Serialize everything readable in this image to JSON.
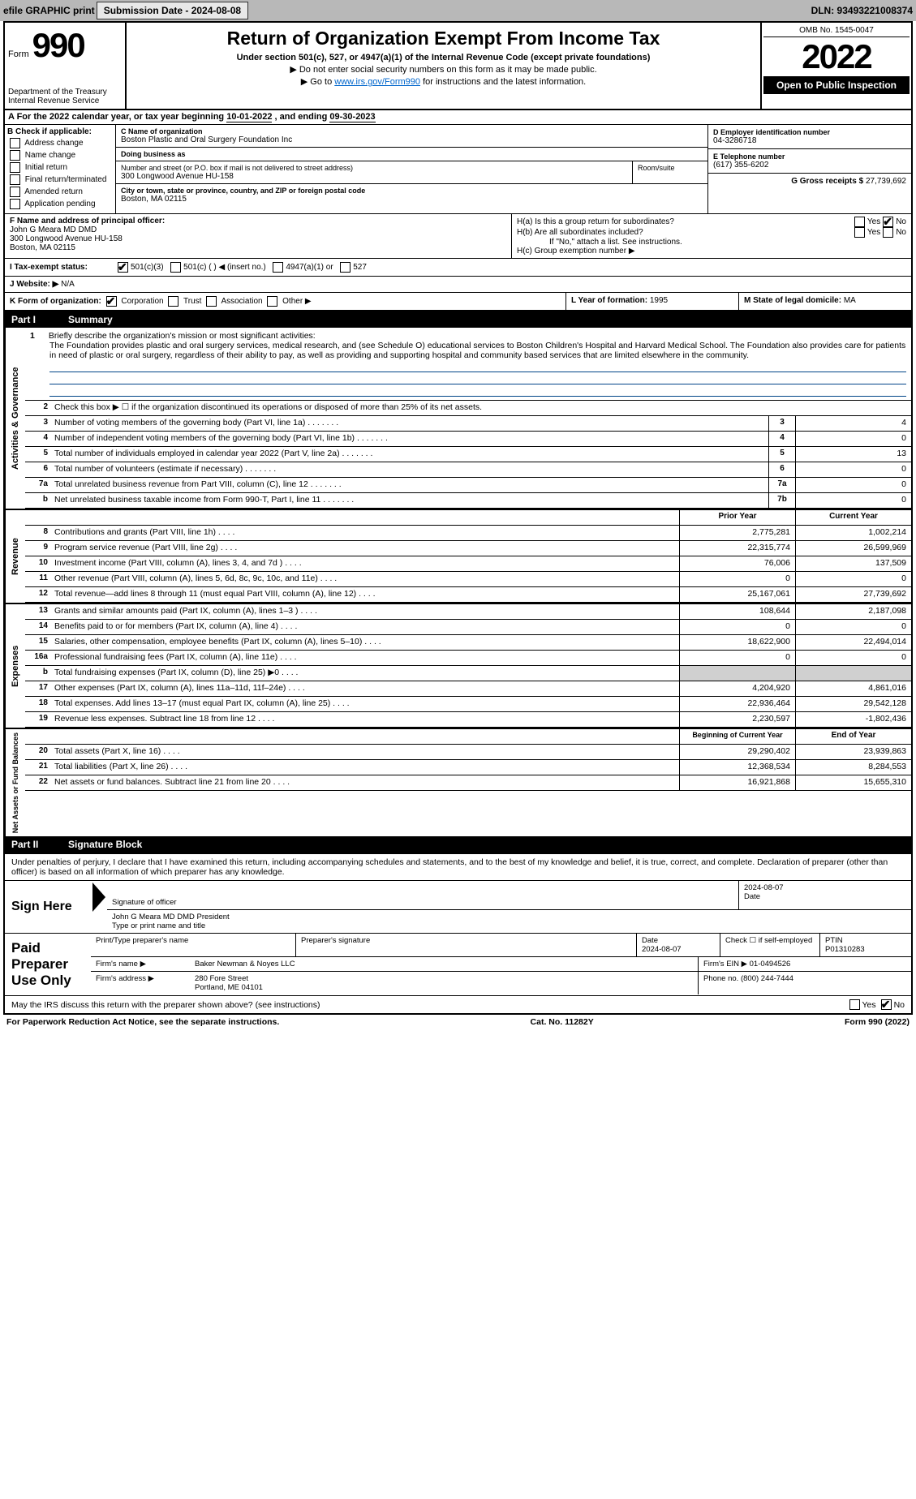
{
  "topbar": {
    "efile_label": "efile GRAPHIC print",
    "submission_label": "Submission Date - 2024-08-08",
    "dln_label": "DLN: 93493221008374"
  },
  "header": {
    "form_word": "Form",
    "form_number": "990",
    "dept": "Department of the Treasury",
    "irs": "Internal Revenue Service",
    "title": "Return of Organization Exempt From Income Tax",
    "subtitle": "Under section 501(c), 527, or 4947(a)(1) of the Internal Revenue Code (except private foundations)",
    "note1": "▶ Do not enter social security numbers on this form as it may be made public.",
    "note2_prefix": "▶ Go to ",
    "note2_link": "www.irs.gov/Form990",
    "note2_suffix": " for instructions and the latest information.",
    "omb": "OMB No. 1545-0047",
    "year": "2022",
    "open": "Open to Public Inspection"
  },
  "period": {
    "label_a": "A For the 2022 calendar year, or tax year beginning ",
    "begin": "10-01-2022",
    "mid": " , and ending ",
    "end": "09-30-2023"
  },
  "section_b": {
    "header": "B Check if applicable:",
    "opts": [
      "Address change",
      "Name change",
      "Initial return",
      "Final return/terminated",
      "Amended return",
      "Application pending"
    ]
  },
  "section_c": {
    "name_lbl": "C Name of organization",
    "name": "Boston Plastic and Oral Surgery Foundation Inc",
    "dba_lbl": "Doing business as",
    "dba": "",
    "street_lbl": "Number and street (or P.O. box if mail is not delivered to street address)",
    "street": "300 Longwood Avenue HU-158",
    "room_lbl": "Room/suite",
    "city_lbl": "City or town, state or province, country, and ZIP or foreign postal code",
    "city": "Boston, MA  02115"
  },
  "section_d": {
    "lbl": "D Employer identification number",
    "ein": "04-3286718",
    "tel_lbl": "E Telephone number",
    "tel": "(617) 355-6202",
    "gross_lbl": "G Gross receipts $ ",
    "gross": "27,739,692"
  },
  "section_f": {
    "lbl": "F Name and address of principal officer:",
    "name": "John G Meara MD DMD",
    "addr1": "300 Longwood Avenue HU-158",
    "addr2": "Boston, MA  02115"
  },
  "section_h": {
    "ha": "H(a)  Is this a group return for subordinates?",
    "hb": "H(b)  Are all subordinates included?",
    "hb_note": "If \"No,\" attach a list. See instructions.",
    "hc": "H(c)  Group exemption number ▶",
    "yes": "Yes",
    "no": "No"
  },
  "tax_status": {
    "lbl": "I  Tax-exempt status:",
    "opts": [
      "501(c)(3)",
      "501(c) (  ) ◀ (insert no.)",
      "4947(a)(1) or",
      "527"
    ]
  },
  "website": {
    "lbl": "J  Website: ▶",
    "val": "N/A"
  },
  "form_org": {
    "lbl": "K Form of organization:",
    "opts": [
      "Corporation",
      "Trust",
      "Association",
      "Other ▶"
    ]
  },
  "year_formed": {
    "lbl": "L Year of formation: ",
    "val": "1995"
  },
  "domicile": {
    "lbl": "M State of legal domicile: ",
    "val": "MA"
  },
  "part1": {
    "header_no": "Part I",
    "header": "Summary",
    "line1_lbl": "Briefly describe the organization's mission or most significant activities:",
    "mission": "The Foundation provides plastic and oral surgery services, medical research, and (see Schedule O) educational services to Boston Children's Hospital and Harvard Medical School. The Foundation also provides care for patients in need of plastic or oral surgery, regardless of their ability to pay, as well as providing and supporting hospital and community based services that are limited elsewhere in the community.",
    "line2": "Check this box ▶ ☐  if the organization discontinued its operations or disposed of more than 25% of its net assets.",
    "governance_lbl": "Activities & Governance",
    "revenue_lbl": "Revenue",
    "expenses_lbl": "Expenses",
    "netassets_lbl": "Net Assets or Fund Balances",
    "rows_gov": [
      {
        "n": "3",
        "d": "Number of voting members of the governing body (Part VI, line 1a)",
        "box": "3",
        "v": "4"
      },
      {
        "n": "4",
        "d": "Number of independent voting members of the governing body (Part VI, line 1b)",
        "box": "4",
        "v": "0"
      },
      {
        "n": "5",
        "d": "Total number of individuals employed in calendar year 2022 (Part V, line 2a)",
        "box": "5",
        "v": "13"
      },
      {
        "n": "6",
        "d": "Total number of volunteers (estimate if necessary)",
        "box": "6",
        "v": "0"
      },
      {
        "n": "7a",
        "d": "Total unrelated business revenue from Part VIII, column (C), line 12",
        "box": "7a",
        "v": "0"
      },
      {
        "n": "b",
        "d": "Net unrelated business taxable income from Form 990-T, Part I, line 11",
        "box": "7b",
        "v": "0"
      }
    ],
    "col_prior": "Prior Year",
    "col_current": "Current Year",
    "rows_rev": [
      {
        "n": "8",
        "d": "Contributions and grants (Part VIII, line 1h)",
        "p": "2,775,281",
        "c": "1,002,214"
      },
      {
        "n": "9",
        "d": "Program service revenue (Part VIII, line 2g)",
        "p": "22,315,774",
        "c": "26,599,969"
      },
      {
        "n": "10",
        "d": "Investment income (Part VIII, column (A), lines 3, 4, and 7d )",
        "p": "76,006",
        "c": "137,509"
      },
      {
        "n": "11",
        "d": "Other revenue (Part VIII, column (A), lines 5, 6d, 8c, 9c, 10c, and 11e)",
        "p": "0",
        "c": "0"
      },
      {
        "n": "12",
        "d": "Total revenue—add lines 8 through 11 (must equal Part VIII, column (A), line 12)",
        "p": "25,167,061",
        "c": "27,739,692"
      }
    ],
    "rows_exp": [
      {
        "n": "13",
        "d": "Grants and similar amounts paid (Part IX, column (A), lines 1–3 )",
        "p": "108,644",
        "c": "2,187,098"
      },
      {
        "n": "14",
        "d": "Benefits paid to or for members (Part IX, column (A), line 4)",
        "p": "0",
        "c": "0"
      },
      {
        "n": "15",
        "d": "Salaries, other compensation, employee benefits (Part IX, column (A), lines 5–10)",
        "p": "18,622,900",
        "c": "22,494,014"
      },
      {
        "n": "16a",
        "d": "Professional fundraising fees (Part IX, column (A), line 11e)",
        "p": "0",
        "c": "0"
      },
      {
        "n": "b",
        "d": "Total fundraising expenses (Part IX, column (D), line 25) ▶0",
        "p": "",
        "c": "",
        "shade": true
      },
      {
        "n": "17",
        "d": "Other expenses (Part IX, column (A), lines 11a–11d, 11f–24e)",
        "p": "4,204,920",
        "c": "4,861,016"
      },
      {
        "n": "18",
        "d": "Total expenses. Add lines 13–17 (must equal Part IX, column (A), line 25)",
        "p": "22,936,464",
        "c": "29,542,128"
      },
      {
        "n": "19",
        "d": "Revenue less expenses. Subtract line 18 from line 12",
        "p": "2,230,597",
        "c": "-1,802,436"
      }
    ],
    "col_begin": "Beginning of Current Year",
    "col_end": "End of Year",
    "rows_net": [
      {
        "n": "20",
        "d": "Total assets (Part X, line 16)",
        "p": "29,290,402",
        "c": "23,939,863"
      },
      {
        "n": "21",
        "d": "Total liabilities (Part X, line 26)",
        "p": "12,368,534",
        "c": "8,284,553"
      },
      {
        "n": "22",
        "d": "Net assets or fund balances. Subtract line 21 from line 20",
        "p": "16,921,868",
        "c": "15,655,310"
      }
    ]
  },
  "part2": {
    "header_no": "Part II",
    "header": "Signature Block",
    "declaration": "Under penalties of perjury, I declare that I have examined this return, including accompanying schedules and statements, and to the best of my knowledge and belief, it is true, correct, and complete. Declaration of preparer (other than officer) is based on all information of which preparer has any knowledge.",
    "sign_here": "Sign Here",
    "sig_officer_lbl": "Signature of officer",
    "sig_date": "2024-08-07",
    "date_lbl": "Date",
    "officer_name": "John G Meara MD DMD  President",
    "officer_name_lbl": "Type or print name and title",
    "paid_prep": "Paid Preparer Use Only",
    "prep_name_lbl": "Print/Type preparer's name",
    "prep_name": "",
    "prep_sig_lbl": "Preparer's signature",
    "prep_date_lbl": "Date",
    "prep_date": "2024-08-07",
    "self_emp_lbl": "Check ☐ if self-employed",
    "ptin_lbl": "PTIN",
    "ptin": "P01310283",
    "firm_name_lbl": "Firm's name    ▶",
    "firm_name": "Baker Newman & Noyes LLC",
    "firm_ein_lbl": "Firm's EIN ▶",
    "firm_ein": "01-0494526",
    "firm_addr_lbl": "Firm's address ▶",
    "firm_addr1": "280 Fore Street",
    "firm_addr2": "Portland, ME  04101",
    "phone_lbl": "Phone no.",
    "phone": "(800) 244-7444",
    "discuss": "May the IRS discuss this return with the preparer shown above? (see instructions)"
  },
  "footer": {
    "pra": "For Paperwork Reduction Act Notice, see the separate instructions.",
    "cat": "Cat. No. 11282Y",
    "form": "Form 990 (2022)"
  },
  "colors": {
    "topbar_bg": "#b8b8b8",
    "link": "#0066cc",
    "black": "#000000",
    "shade": "#d0d0d0"
  }
}
